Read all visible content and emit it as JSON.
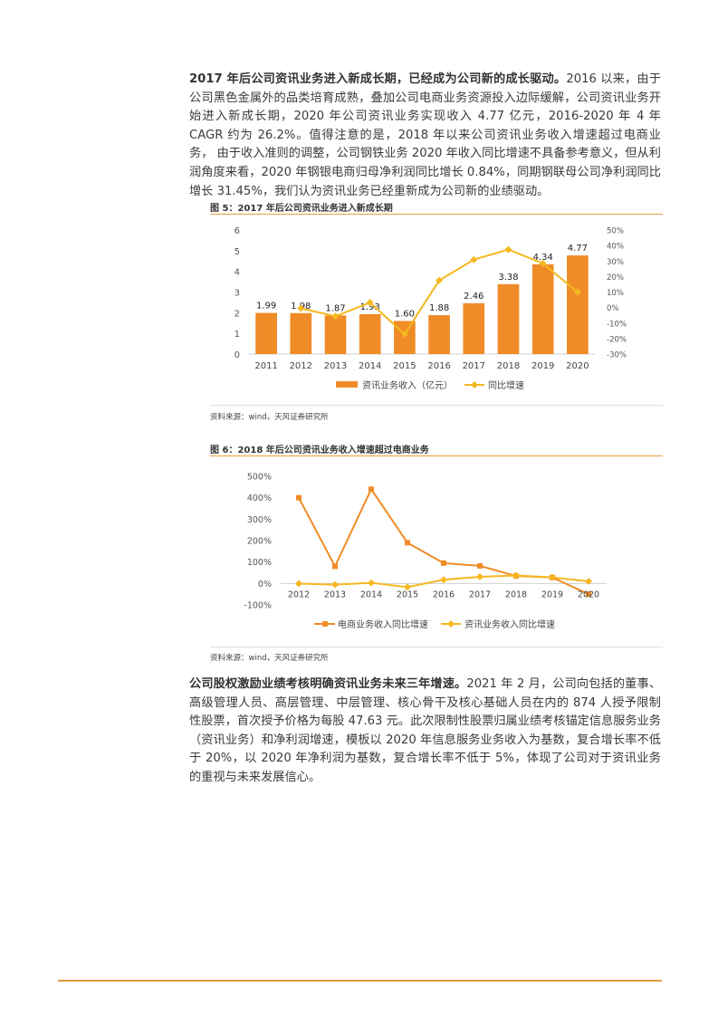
{
  "para1": {
    "lead": "2017 年后公司资讯业务进入新成长期，已经成为公司新的成长驱动。",
    "body": "2016 以来，由于公司黑色金属外的品类培育成熟，叠加公司电商业务资源投入边际缓解，公司资讯业务开始进入新成长期，2020 年公司资讯业务实现收入 4.77 亿元，2016-2020 年 4 年 CAGR 约为 26.2%。值得注意的是，2018 年以来公司资讯业务收入增速超过电商业务， 由于收入准则的调整，公司钢铁业务 2020 年收入同比增速不具备参考意义，但从利润角度来看，2020 年钢银电商归母净利润同比增长 0.84%，同期钢联母公司净利润同比增长 31.45%，我们认为资讯业务已经重新成为公司新的业绩驱动。"
  },
  "fig5": {
    "title": "图 5：2017 年后公司资讯业务进入新成长期",
    "source": "资料来源：wind，天风证券研究所"
  },
  "fig6": {
    "title": "图 6：2018 年后公司资讯业务收入增速超过电商业务",
    "source": "资料来源：wind，天风证券研究所"
  },
  "para2": {
    "lead": "公司股权激励业绩考核明确资讯业务未来三年增速。",
    "body": "2021 年 2 月，公司向包括的董事、高级管理人员、高层管理、中层管理、核心骨干及核心基础人员在内的 874 人授予限制性股票，首次授予价格为每股 47.63 元。此次限制性股票归属业绩考核锚定信息服务业务（资讯业务）和净利润增速，模板以 2020 年信息服务业务收入为基数，复合增长率不低于 20%，以 2020 年净利润为基数，复合增长率不低于 5%，体现了公司对于资讯业务的重视与未来发展信心。"
  },
  "colors": {
    "orange": "#f08c28",
    "yellow": "#f5b820",
    "axis": "#d9d9d9",
    "rule": "#e09a3c"
  },
  "chart_data": [
    {
      "type": "bar",
      "categories": [
        "2011",
        "2012",
        "2013",
        "2014",
        "2015",
        "2016",
        "2017",
        "2018",
        "2019",
        "2020"
      ],
      "series": [
        {
          "name": "资讯业务收入（亿元）",
          "type": "bar",
          "axis": "left",
          "values": [
            1.99,
            1.98,
            1.87,
            1.93,
            1.6,
            1.88,
            2.46,
            3.38,
            4.34,
            4.77
          ],
          "labels": [
            "1.99",
            "1.98",
            "1.87",
            "1.93",
            "1.60",
            "1.88",
            "2.46",
            "3.38",
            "4.34",
            "4.77"
          ]
        },
        {
          "name": "同比增速",
          "type": "line",
          "axis": "right",
          "values": [
            null,
            -0.5,
            -5.6,
            3.2,
            -17.1,
            17.5,
            30.9,
            37.4,
            28.4,
            9.9
          ]
        }
      ],
      "left_ticks": [
        "0",
        "1",
        "2",
        "3",
        "4",
        "5",
        "6"
      ],
      "left_range": [
        0,
        6
      ],
      "right_ticks": [
        "50%",
        "40%",
        "30%",
        "20%",
        "10%",
        "0%",
        "-10%",
        "-20%",
        "-30%"
      ],
      "right_range": [
        -30,
        50
      ],
      "legend": "bottom"
    },
    {
      "type": "line",
      "categories": [
        "2012",
        "2013",
        "2014",
        "2015",
        "2016",
        "2017",
        "2018",
        "2019",
        "2020"
      ],
      "series": [
        {
          "name": "电商业务收入同比增速",
          "marker": "square",
          "values": [
            400,
            80,
            440,
            190,
            95,
            82,
            35,
            28,
            -50
          ]
        },
        {
          "name": "资讯业务收入同比增速",
          "marker": "diamond",
          "values": [
            -0.5,
            -5.6,
            3.2,
            -17.1,
            17.5,
            30.9,
            37.4,
            28.4,
            9.9
          ]
        }
      ],
      "y_ticks": [
        "500%",
        "400%",
        "300%",
        "200%",
        "100%",
        "0%",
        "-100%"
      ],
      "ylim": [
        -100,
        500
      ],
      "legend": "bottom"
    }
  ]
}
